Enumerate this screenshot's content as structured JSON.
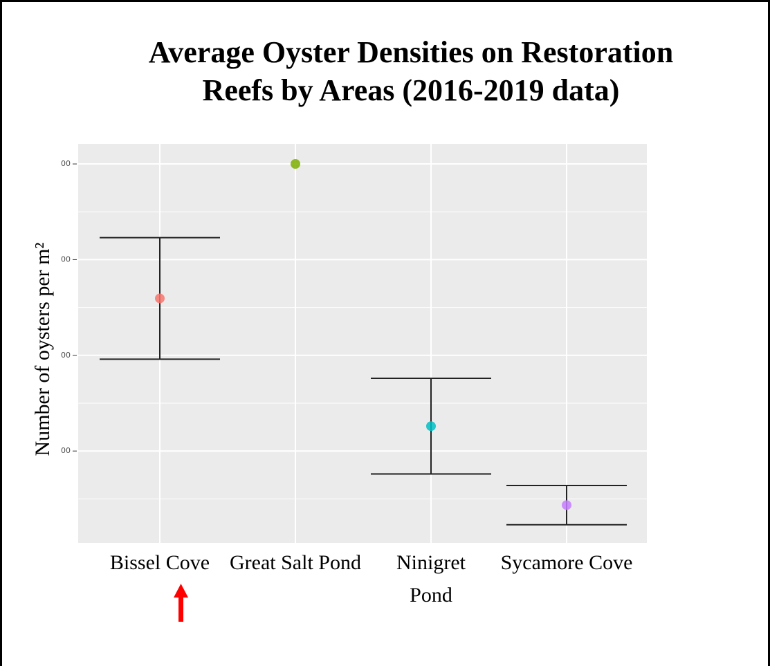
{
  "chart_data": {
    "type": "errorbar",
    "title": [
      "Average Oyster Densities on Restoration",
      "Reefs by Areas (2016-2019 data)"
    ],
    "y_label": "Number of oysters per m²",
    "categories": [
      "Bissel Cove",
      "Great Salt Pond",
      [
        "Ninigret",
        "Pond"
      ],
      "Sycamore Cove"
    ],
    "values": [
      519,
      800,
      252,
      87
    ],
    "errors": [
      127,
      null,
      100,
      41
    ],
    "colors": [
      "#f8766d",
      "#7cae00",
      "#00bfc4",
      "#c77cff"
    ],
    "ylim": [
      8,
      842
    ],
    "yticks": [
      {
        "value": 200,
        "label": "00"
      },
      {
        "value": 400,
        "label": "00"
      },
      {
        "value": 600,
        "label": "00"
      },
      {
        "value": 800,
        "label": "00"
      }
    ],
    "grid": true
  }
}
